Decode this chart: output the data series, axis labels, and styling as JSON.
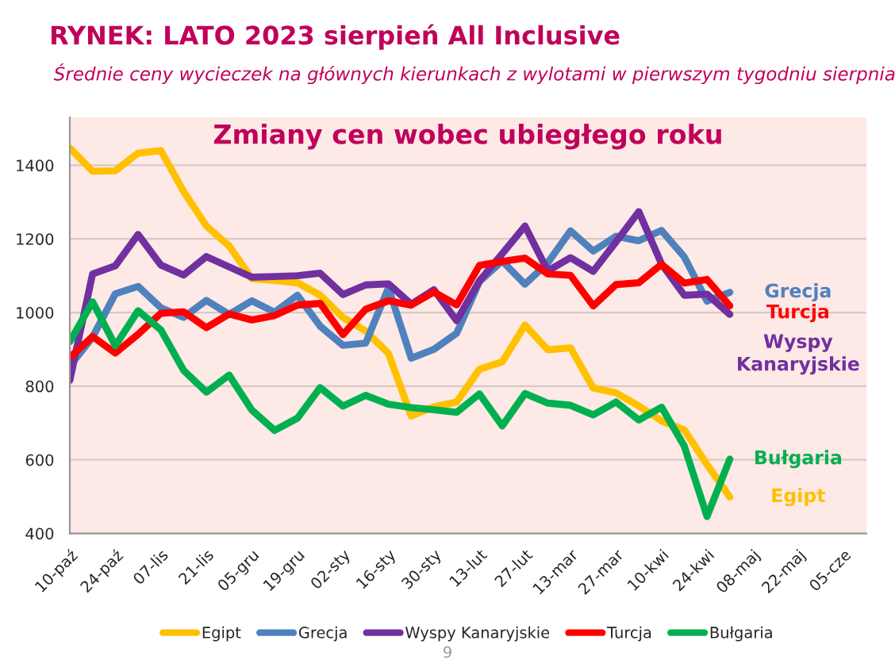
{
  "chart_data": {
    "type": "line",
    "title": "Zmiany cen wobec ubiegłego roku",
    "annotations": [
      "RYNEK: LATO 2023 sierpień All Inclusive",
      "Średnie ceny wycieczek na głównych kierunkach z wylotami w pierwszym tygodniu sierpnia",
      "9"
    ],
    "categories": [
      "10-paź",
      null,
      "24-paź",
      null,
      "07-lis",
      null,
      "21-lis",
      null,
      "05-gru",
      null,
      "19-gru",
      null,
      "02-sty",
      null,
      "16-sty",
      null,
      "30-sty",
      null,
      "13-lut",
      null,
      "27-lut",
      null,
      "13-mar",
      null,
      "27-mar",
      null,
      "10-kwi",
      null,
      "24-kwi",
      null,
      "08-maj",
      null,
      "22-maj",
      null,
      "05-cze"
    ],
    "series": [
      {
        "name": "Egipt",
        "color": "#ffc000",
        "values": [
          1447,
          1384,
          1385,
          1433,
          1440,
          1329,
          1235,
          1181,
          1092,
          1087,
          1081,
          1047,
          987,
          950,
          889,
          719,
          744,
          757,
          846,
          866,
          966,
          899,
          904,
          795,
          782,
          746,
          706,
          681,
          587,
          499,
          null,
          null,
          null,
          null,
          null
        ]
      },
      {
        "name": "Grecja",
        "color": "#4f81bd",
        "values": [
          855,
          933,
          1051,
          1071,
          1013,
          987,
          1033,
          995,
          1032,
          1001,
          1047,
          963,
          911,
          917,
          1067,
          876,
          900,
          944,
          1084,
          1140,
          1077,
          1135,
          1222,
          1167,
          1207,
          1195,
          1223,
          1151,
          1031,
          1055,
          null,
          null,
          null,
          null,
          null
        ]
      },
      {
        "name": "Wyspy Kanaryjskie",
        "color": "#7030a0",
        "values": [
          816,
          1105,
          1127,
          1212,
          1129,
          1102,
          1152,
          1124,
          1096,
          1098,
          1100,
          1107,
          1049,
          1075,
          1078,
          1023,
          1062,
          978,
          1086,
          1160,
          1235,
          1113,
          1149,
          1112,
          1192,
          1274,
          1132,
          1047,
          1050,
          995,
          null,
          null,
          null,
          null,
          null
        ]
      },
      {
        "name": "Turcja",
        "color": "#ff0000",
        "values": [
          878,
          935,
          890,
          941,
          998,
          1002,
          959,
          996,
          980,
          992,
          1020,
          1025,
          940,
          1009,
          1032,
          1020,
          1056,
          1021,
          1128,
          1139,
          1148,
          1105,
          1101,
          1018,
          1076,
          1081,
          1131,
          1080,
          1090,
          1018,
          null,
          null,
          null,
          null,
          null
        ]
      },
      {
        "name": "Bułgaria",
        "color": "#00b050",
        "values": [
          921,
          1029,
          910,
          1005,
          953,
          843,
          784,
          830,
          735,
          680,
          713,
          796,
          746,
          775,
          751,
          742,
          736,
          729,
          779,
          692,
          780,
          754,
          748,
          722,
          757,
          708,
          743,
          637,
          446,
          602,
          null,
          null,
          null,
          null,
          null
        ]
      }
    ],
    "ylim": [
      400,
      1530
    ],
    "yticks": [
      400,
      600,
      800,
      1000,
      1200,
      1400
    ],
    "grid": "y",
    "legend": "bottom"
  }
}
